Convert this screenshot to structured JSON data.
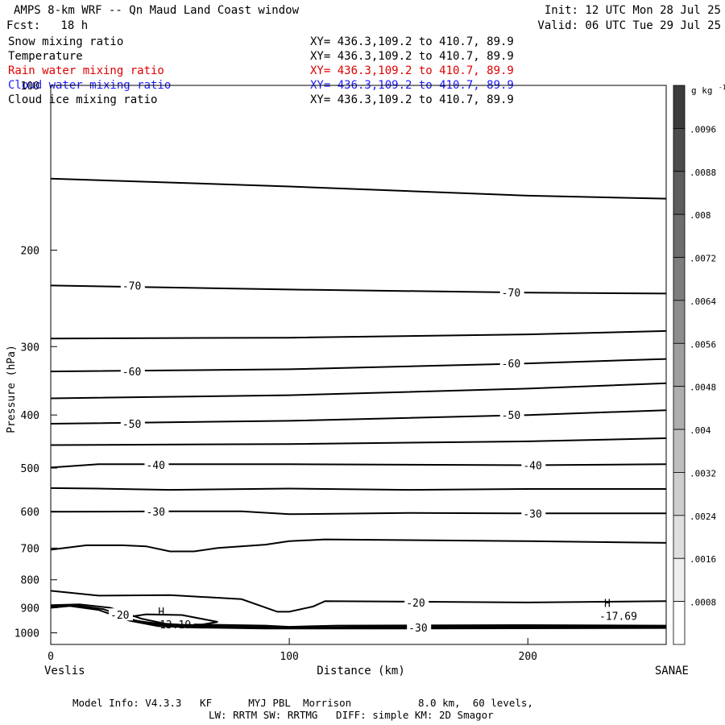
{
  "header": {
    "title": "AMPS 8-km WRF -- Qn Maud Land Coast window",
    "fcst": "Fcst:   18 h",
    "init": "Init: 12 UTC Mon 28 Jul 25",
    "valid": "Valid: 06 UTC Tue 29 Jul 25"
  },
  "fields": [
    {
      "name": "Snow mixing ratio",
      "xy": "XY= 436.3,109.2 to 410.7, 89.9",
      "color": "#000000"
    },
    {
      "name": "Temperature",
      "xy": "XY= 436.3,109.2 to 410.7, 89.9",
      "color": "#000000"
    },
    {
      "name": "Rain water mixing ratio",
      "xy": "XY= 436.3,109.2 to 410.7, 89.9",
      "color": "#e00000"
    },
    {
      "name": "Cloud water mixing ratio",
      "xy": "XY= 436.3,109.2 to 410.7, 89.9",
      "color": "#1a1aff"
    },
    {
      "name": "Cloud ice mixing ratio",
      "xy": "XY= 436.3,109.2 to 410.7, 89.9",
      "color": "#000000"
    }
  ],
  "footer": {
    "line1": "Model Info: V4.3.3   KF      MYJ PBL  Morrison           8.0 km,  60 levels,",
    "line2": "LW: RRTM SW: RRTMG   DIFF: simple KM: 2D Smagor"
  },
  "chart_data": {
    "type": "contour",
    "xlabel": "Distance (km)",
    "ylabel": "Pressure (hPa)",
    "xlim": [
      0,
      258
    ],
    "ylim": [
      100,
      1050
    ],
    "y_scale": "log",
    "x_ticks": [
      0,
      100,
      200
    ],
    "y_ticks": [
      100,
      200,
      300,
      400,
      500,
      600,
      700,
      800,
      900,
      1000
    ],
    "x_end_labels": {
      "left": "Veslis",
      "right": "SANAE"
    },
    "colorbar": {
      "unit": "g kg",
      "unit_exp": "-1",
      "ticks": [
        ".0096",
        ".0088",
        ".008",
        ".0072",
        ".0064",
        ".0056",
        ".0048",
        ".004",
        ".0032",
        ".0024",
        ".0016",
        ".0008"
      ]
    },
    "temperature_contours": [
      {
        "level": -75,
        "points": [
          [
            0,
            148
          ],
          [
            100,
            153
          ],
          [
            200,
            159
          ],
          [
            258,
            161
          ]
        ]
      },
      {
        "level": -70,
        "points": [
          [
            0,
            232
          ],
          [
            100,
            236
          ],
          [
            200,
            239
          ],
          [
            258,
            240
          ]
        ]
      },
      {
        "level": -65,
        "points": [
          [
            0,
            290
          ],
          [
            100,
            289
          ],
          [
            200,
            285
          ],
          [
            258,
            281
          ]
        ]
      },
      {
        "level": -60,
        "points": [
          [
            0,
            333
          ],
          [
            100,
            330
          ],
          [
            200,
            322
          ],
          [
            258,
            316
          ]
        ]
      },
      {
        "level": -55,
        "points": [
          [
            0,
            373
          ],
          [
            100,
            368
          ],
          [
            200,
            358
          ],
          [
            258,
            350
          ]
        ]
      },
      {
        "level": -50,
        "points": [
          [
            0,
            415
          ],
          [
            100,
            410
          ],
          [
            200,
            400
          ],
          [
            258,
            392
          ]
        ]
      },
      {
        "level": -45,
        "points": [
          [
            0,
            454
          ],
          [
            100,
            452
          ],
          [
            200,
            447
          ],
          [
            258,
            441
          ]
        ]
      },
      {
        "level": -40,
        "points": [
          [
            0,
            499
          ],
          [
            20,
            492
          ],
          [
            100,
            492
          ],
          [
            200,
            494
          ],
          [
            258,
            492
          ]
        ]
      },
      {
        "level": -35,
        "points": [
          [
            0,
            544
          ],
          [
            20,
            545
          ],
          [
            50,
            548
          ],
          [
            100,
            545
          ],
          [
            150,
            548
          ],
          [
            200,
            546
          ],
          [
            258,
            546
          ]
        ]
      },
      {
        "level": -30,
        "points": [
          [
            0,
            601
          ],
          [
            50,
            600
          ],
          [
            80,
            600
          ],
          [
            100,
            607
          ],
          [
            150,
            604
          ],
          [
            200,
            605
          ],
          [
            258,
            605
          ]
        ]
      },
      {
        "level": -25,
        "points": [
          [
            0,
            705
          ],
          [
            15,
            692
          ],
          [
            30,
            692
          ],
          [
            40,
            695
          ],
          [
            50,
            710
          ],
          [
            60,
            710
          ],
          [
            70,
            700
          ],
          [
            90,
            690
          ],
          [
            100,
            680
          ],
          [
            115,
            675
          ],
          [
            150,
            677
          ],
          [
            200,
            680
          ],
          [
            258,
            685
          ]
        ]
      },
      {
        "level": -20,
        "points": [
          [
            0,
            838
          ],
          [
            20,
            855
          ],
          [
            50,
            853
          ],
          [
            80,
            868
          ],
          [
            95,
            915
          ],
          [
            100,
            915
          ],
          [
            110,
            895
          ],
          [
            115,
            875
          ],
          [
            200,
            880
          ],
          [
            258,
            875
          ]
        ]
      }
    ],
    "contour_labels": [
      {
        "text": "-70",
        "x": 30,
        "y": 232
      },
      {
        "text": "-70",
        "x": 189,
        "y": 239
      },
      {
        "text": "-60",
        "x": 30,
        "y": 333
      },
      {
        "text": "-60",
        "x": 189,
        "y": 322
      },
      {
        "text": "-50",
        "x": 30,
        "y": 415
      },
      {
        "text": "-50",
        "x": 189,
        "y": 400
      },
      {
        "text": "-40",
        "x": 40,
        "y": 493
      },
      {
        "text": "-40",
        "x": 198,
        "y": 494
      },
      {
        "text": "-30",
        "x": 40,
        "y": 600
      },
      {
        "text": "-30",
        "x": 198,
        "y": 605
      },
      {
        "text": "-20",
        "x": 149,
        "y": 880
      },
      {
        "text": "-20",
        "x": 25,
        "y": 927
      },
      {
        "text": "-30",
        "x": 150,
        "y": 978
      }
    ],
    "extrema": [
      {
        "mark": "H",
        "value": "-13.19",
        "x": 45,
        "y": 955
      },
      {
        "mark": "H",
        "value": "-17.69",
        "x": 232,
        "y": 922
      }
    ]
  }
}
